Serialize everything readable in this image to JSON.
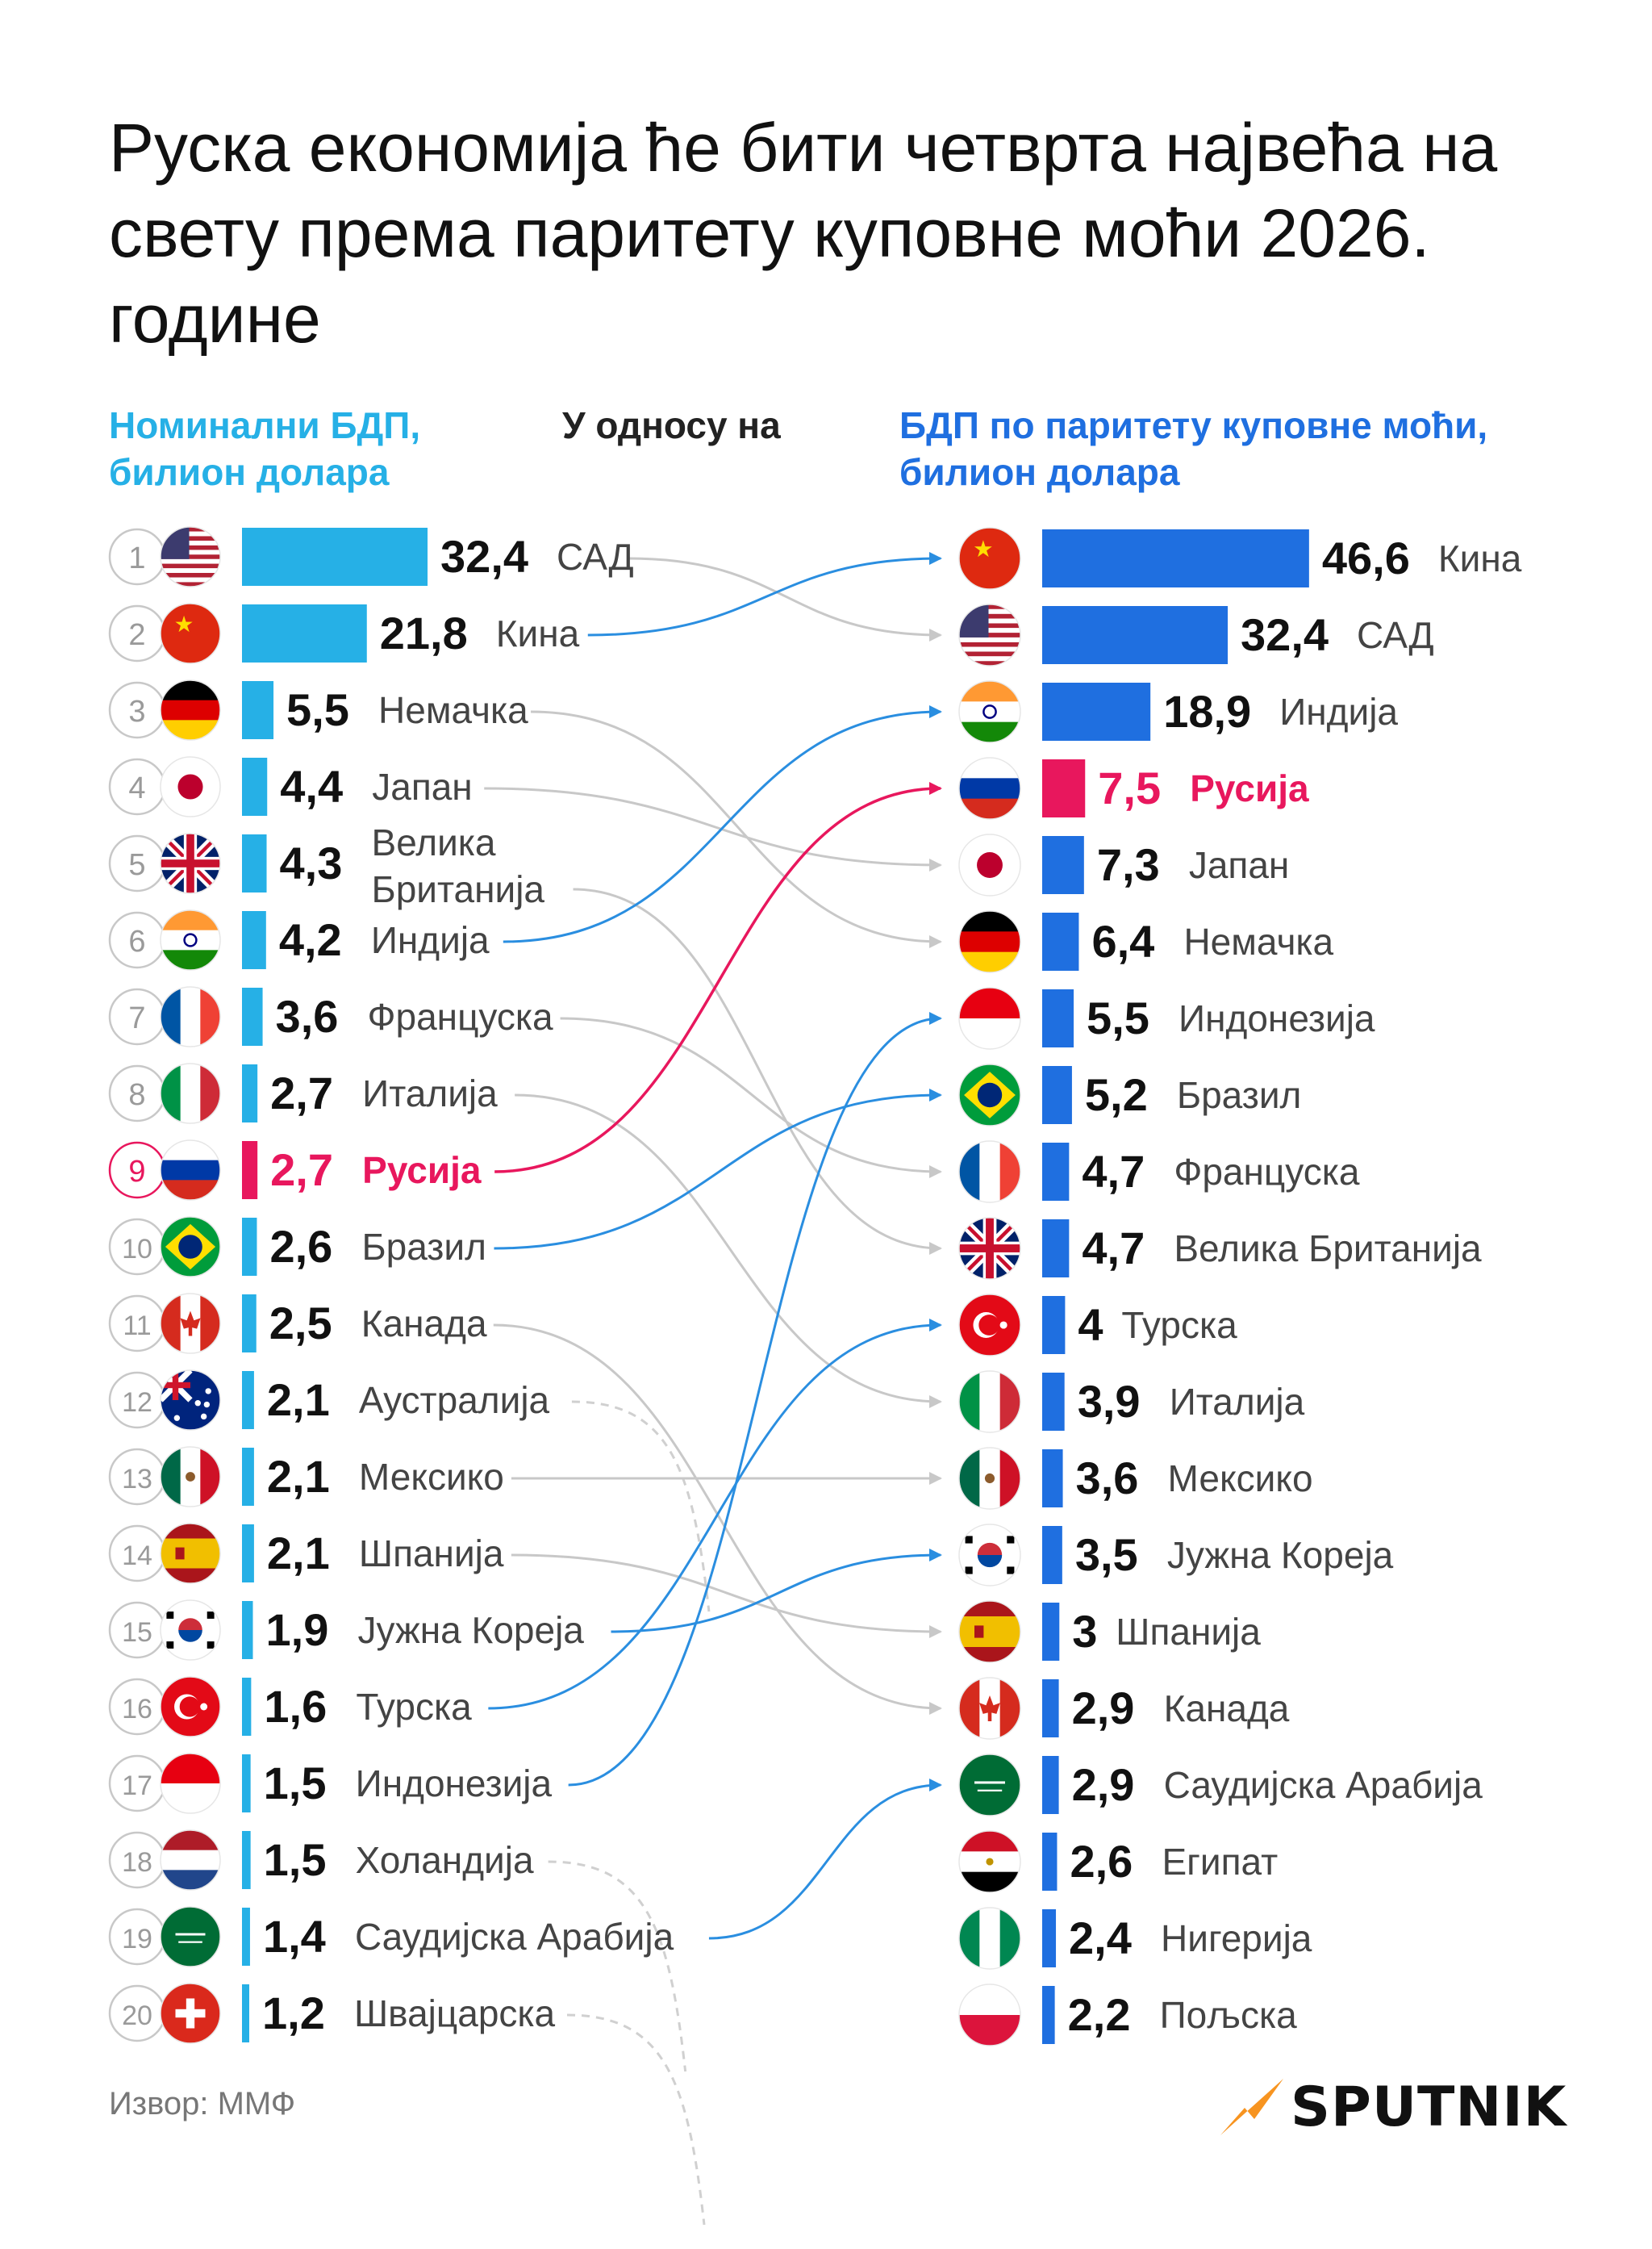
{
  "title": "Руска економија ће бити четврта највећа на свету према паритету куповне моћи 2026. године",
  "header_left": "Номинални БДП, билион долара",
  "header_mid": "У односу на",
  "header_right": "БДП по паритету куповне моћи, билион долара",
  "source": "Извор: ММФ",
  "logo_text": "SPUTNIK",
  "colors": {
    "nominal_bar": "#26b0e6",
    "ppp_bar": "#1f6fe0",
    "russia": "#e8175d",
    "connector_grey": "#c8c8c8",
    "logo_accent": "#f79420"
  },
  "chart_data": {
    "type": "bar",
    "left": {
      "name": "Номинални БДП, билион долара",
      "items": [
        {
          "rank": "1",
          "country": "САД",
          "value": "32,4",
          "v": 32.4,
          "flag": "us-flag"
        },
        {
          "rank": "2",
          "country": "Кина",
          "value": "21,8",
          "v": 21.8,
          "flag": "cn-flag"
        },
        {
          "rank": "3",
          "country": "Немачка",
          "value": "5,5",
          "v": 5.5,
          "flag": "de-flag"
        },
        {
          "rank": "4",
          "country": "Јапан",
          "value": "4,4",
          "v": 4.4,
          "flag": "jp-flag"
        },
        {
          "rank": "5",
          "country": "Велика Британија",
          "value": "4,3",
          "v": 4.3,
          "flag": "gb-flag"
        },
        {
          "rank": "6",
          "country": "Индија",
          "value": "4,2",
          "v": 4.2,
          "flag": "in-flag"
        },
        {
          "rank": "7",
          "country": "Француска",
          "value": "3,6",
          "v": 3.6,
          "flag": "fr-flag"
        },
        {
          "rank": "8",
          "country": "Италија",
          "value": "2,7",
          "v": 2.7,
          "flag": "it-flag"
        },
        {
          "rank": "9",
          "country": "Русија",
          "value": "2,7",
          "v": 2.7,
          "flag": "ru-flag"
        },
        {
          "rank": "10",
          "country": "Бразил",
          "value": "2,6",
          "v": 2.6,
          "flag": "br-flag"
        },
        {
          "rank": "11",
          "country": "Канада",
          "value": "2,5",
          "v": 2.5,
          "flag": "ca-flag"
        },
        {
          "rank": "12",
          "country": "Аустралија",
          "value": "2,1",
          "v": 2.1,
          "flag": "au-flag"
        },
        {
          "rank": "13",
          "country": "Мексико",
          "value": "2,1",
          "v": 2.1,
          "flag": "mx-flag"
        },
        {
          "rank": "14",
          "country": "Шпанија",
          "value": "2,1",
          "v": 2.1,
          "flag": "es-flag"
        },
        {
          "rank": "15",
          "country": "Јужна Кореја",
          "value": "1,9",
          "v": 1.9,
          "flag": "kr-flag"
        },
        {
          "rank": "16",
          "country": "Турска",
          "value": "1,6",
          "v": 1.6,
          "flag": "tr-flag"
        },
        {
          "rank": "17",
          "country": "Индонезија",
          "value": "1,5",
          "v": 1.5,
          "flag": "id-flag"
        },
        {
          "rank": "18",
          "country": "Холандија",
          "value": "1,5",
          "v": 1.5,
          "flag": "nl-flag"
        },
        {
          "rank": "19",
          "country": "Саудијска Арабија",
          "value": "1,4",
          "v": 1.4,
          "flag": "sa-flag"
        },
        {
          "rank": "20",
          "country": "Швајцарска",
          "value": "1,2",
          "v": 1.2,
          "flag": "ch-flag"
        }
      ]
    },
    "right": {
      "name": "БДП по паритету куповне моћи, билион долара",
      "items": [
        {
          "country": "Кина",
          "value": "46,6",
          "v": 46.6,
          "flag": "cn-flag"
        },
        {
          "country": "САД",
          "value": "32,4",
          "v": 32.4,
          "flag": "us-flag"
        },
        {
          "country": "Индија",
          "value": "18,9",
          "v": 18.9,
          "flag": "in-flag"
        },
        {
          "country": "Русија",
          "value": "7,5",
          "v": 7.5,
          "flag": "ru-flag"
        },
        {
          "country": "Јапан",
          "value": "7,3",
          "v": 7.3,
          "flag": "jp-flag"
        },
        {
          "country": "Немачка",
          "value": "6,4",
          "v": 6.4,
          "flag": "de-flag"
        },
        {
          "country": "Индонезија",
          "value": "5,5",
          "v": 5.5,
          "flag": "id-flag"
        },
        {
          "country": "Бразил",
          "value": "5,2",
          "v": 5.2,
          "flag": "br-flag"
        },
        {
          "country": "Француска",
          "value": "4,7",
          "v": 4.7,
          "flag": "fr-flag"
        },
        {
          "country": "Велика Британија",
          "value": "4,7",
          "v": 4.7,
          "flag": "gb-flag"
        },
        {
          "country": "Турска",
          "value": "4",
          "v": 4,
          "flag": "tr-flag"
        },
        {
          "country": "Италија",
          "value": "3,9",
          "v": 3.9,
          "flag": "it-flag"
        },
        {
          "country": "Мексико",
          "value": "3,6",
          "v": 3.6,
          "flag": "mx-flag"
        },
        {
          "country": "Јужна Кореја",
          "value": "3,5",
          "v": 3.5,
          "flag": "kr-flag"
        },
        {
          "country": "Шпанија",
          "value": "3",
          "v": 3,
          "flag": "es-flag"
        },
        {
          "country": "Канада",
          "value": "2,9",
          "v": 2.9,
          "flag": "ca-flag"
        },
        {
          "country": "Саудијска Арабија",
          "value": "2,9",
          "v": 2.9,
          "flag": "sa-flag"
        },
        {
          "country": "Египат",
          "value": "2,6",
          "v": 2.6,
          "flag": "eg-flag"
        },
        {
          "country": "Нигерија",
          "value": "2,4",
          "v": 2.4,
          "flag": "ng-flag"
        },
        {
          "country": "Пољска",
          "value": "2,2",
          "v": 2.2,
          "flag": "pl-flag"
        }
      ]
    }
  }
}
